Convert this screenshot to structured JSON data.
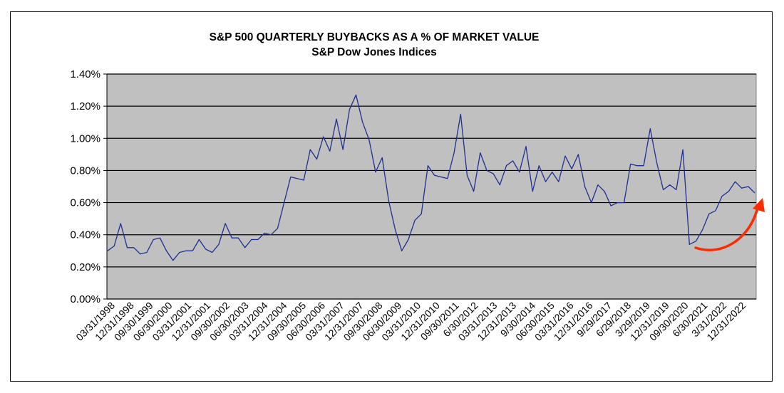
{
  "chart_data": {
    "type": "line",
    "title": "S&P 500 QUARTERLY  BUYBACKS  AS A % OF MARKET  VALUE",
    "subtitle": "S&P Dow Jones Indices",
    "xlabel": "",
    "ylabel": "",
    "ylim": [
      0,
      1.4
    ],
    "ytick_labels": [
      "0.00%",
      "0.20%",
      "0.40%",
      "0.60%",
      "0.80%",
      "1.00%",
      "1.20%",
      "1.40%"
    ],
    "grid": true,
    "legend": "none",
    "colors": {
      "line": "#1f2f8f",
      "plot_bg": "#c0c0c0",
      "gridline": "#000000",
      "annotation_arrow": "#ff2a00"
    },
    "x_tick_labels": [
      "03/31/1998",
      "12/31/1998",
      "09/30/1999",
      "06/30/2000",
      "03/31/2001",
      "12/31/2001",
      "09/30/2002",
      "06/30/2003",
      "03/31/2004",
      "12/31/2004",
      "09/30/2005",
      "06/30/2006",
      "03/31/2007",
      "12/31/2007",
      "09/30/2008",
      "06/30/2009",
      "03/31/2010",
      "12/31/2010",
      "09/30/2011",
      "6/30/2012",
      "03/31/2013",
      "12/31/2013",
      "9/30/2014",
      "06/30/2015",
      "03/31/2016",
      "12/31/2016",
      "9/29/2017",
      "6/29/2018",
      "3/29/2019",
      "12/31/2019",
      "09/30/2020",
      "6/30/2021",
      "3/31/2022",
      "12/31/2022"
    ],
    "series": [
      {
        "values": [
          0.3,
          0.33,
          0.47,
          0.32,
          0.32,
          0.28,
          0.29,
          0.37,
          0.38,
          0.3,
          0.24,
          0.29,
          0.3,
          0.3,
          0.37,
          0.31,
          0.29,
          0.34,
          0.47,
          0.38,
          0.38,
          0.32,
          0.37,
          0.37,
          0.41,
          0.4,
          0.44,
          0.6,
          0.76,
          0.75,
          0.74,
          0.93,
          0.87,
          1.01,
          0.92,
          1.12,
          0.93,
          1.18,
          1.27,
          1.1,
          0.99,
          0.79,
          0.88,
          0.61,
          0.43,
          0.3,
          0.37,
          0.49,
          0.53,
          0.83,
          0.77,
          0.76,
          0.75,
          0.91,
          1.15,
          0.77,
          0.67,
          0.91,
          0.8,
          0.78,
          0.71,
          0.83,
          0.86,
          0.79,
          0.95,
          0.67,
          0.83,
          0.73,
          0.79,
          0.73,
          0.89,
          0.81,
          0.9,
          0.7,
          0.6,
          0.71,
          0.67,
          0.58,
          0.6,
          0.6,
          0.84,
          0.83,
          0.83,
          1.06,
          0.85,
          0.68,
          0.71,
          0.68,
          0.93,
          0.34,
          0.36,
          0.43,
          0.53,
          0.55,
          0.64,
          0.67,
          0.73,
          0.69,
          0.7,
          0.66
        ]
      }
    ]
  }
}
